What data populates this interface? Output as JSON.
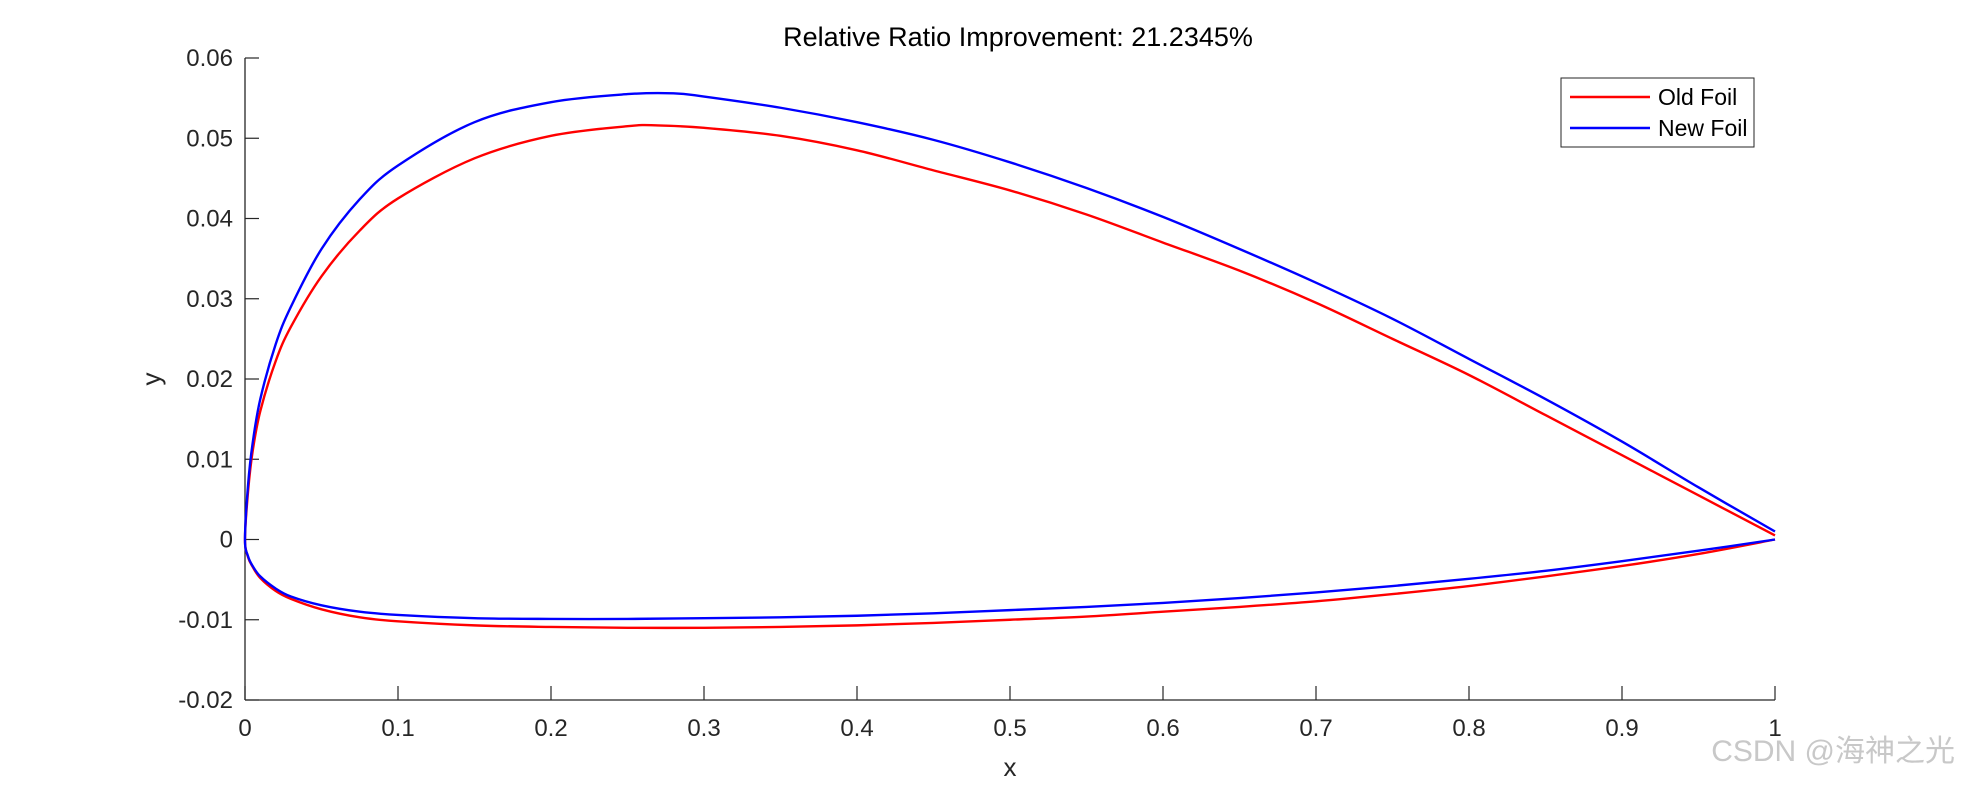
{
  "chart_data": {
    "type": "line",
    "title": "Relative Ratio Improvement: 21.2345%",
    "xlabel": "x",
    "ylabel": "y",
    "xlim": [
      0,
      1
    ],
    "ylim": [
      -0.02,
      0.06
    ],
    "xticks": [
      0,
      0.1,
      0.2,
      0.3,
      0.4,
      0.5,
      0.6,
      0.7,
      0.8,
      0.9,
      1
    ],
    "xtick_labels": [
      "0",
      "0.1",
      "0.2",
      "0.3",
      "0.4",
      "0.5",
      "0.6",
      "0.7",
      "0.8",
      "0.9",
      "1"
    ],
    "yticks": [
      -0.02,
      -0.01,
      0,
      0.01,
      0.02,
      0.03,
      0.04,
      0.05,
      0.06
    ],
    "ytick_labels": [
      "-0.02",
      "-0.01",
      "0",
      "0.01",
      "0.02",
      "0.03",
      "0.04",
      "0.05",
      "0.06"
    ],
    "grid": false,
    "legend_position": "top-right",
    "series": [
      {
        "name": "Old Foil",
        "color": "#ff0000",
        "x": [
          1.0,
          0.95,
          0.9,
          0.85,
          0.8,
          0.75,
          0.7,
          0.65,
          0.6,
          0.55,
          0.5,
          0.45,
          0.4,
          0.35,
          0.3,
          0.27,
          0.25,
          0.2,
          0.15,
          0.1,
          0.075,
          0.05,
          0.03,
          0.02,
          0.01,
          0.005,
          0.002,
          0.0,
          0.002,
          0.005,
          0.01,
          0.02,
          0.03,
          0.05,
          0.075,
          0.1,
          0.15,
          0.2,
          0.25,
          0.3,
          0.35,
          0.4,
          0.45,
          0.5,
          0.55,
          0.6,
          0.65,
          0.7,
          0.75,
          0.8,
          0.85,
          0.9,
          0.95,
          1.0
        ],
        "y": [
          0.0005,
          0.0055,
          0.0105,
          0.0155,
          0.0205,
          0.025,
          0.0295,
          0.0335,
          0.037,
          0.0405,
          0.0435,
          0.046,
          0.0485,
          0.0503,
          0.0513,
          0.0516,
          0.0515,
          0.0503,
          0.0475,
          0.0425,
          0.0385,
          0.0328,
          0.0265,
          0.0222,
          0.016,
          0.011,
          0.006,
          0.0,
          -0.0022,
          -0.0034,
          -0.0048,
          -0.0064,
          -0.0074,
          -0.0087,
          -0.0097,
          -0.0102,
          -0.0107,
          -0.0109,
          -0.011,
          -0.011,
          -0.0109,
          -0.0107,
          -0.0104,
          -0.01,
          -0.0096,
          -0.009,
          -0.0084,
          -0.0077,
          -0.0068,
          -0.0058,
          -0.0046,
          -0.0033,
          -0.0018,
          0.0
        ]
      },
      {
        "name": "New Foil",
        "color": "#0000ff",
        "x": [
          1.0,
          0.95,
          0.9,
          0.85,
          0.8,
          0.75,
          0.7,
          0.65,
          0.6,
          0.55,
          0.5,
          0.45,
          0.4,
          0.35,
          0.3,
          0.28,
          0.25,
          0.2,
          0.15,
          0.1,
          0.075,
          0.05,
          0.03,
          0.02,
          0.01,
          0.005,
          0.002,
          0.0,
          0.002,
          0.005,
          0.01,
          0.02,
          0.03,
          0.05,
          0.075,
          0.1,
          0.15,
          0.2,
          0.25,
          0.3,
          0.35,
          0.4,
          0.45,
          0.5,
          0.55,
          0.6,
          0.65,
          0.7,
          0.75,
          0.8,
          0.85,
          0.9,
          0.95,
          1.0
        ],
        "y": [
          0.001,
          0.0065,
          0.0122,
          0.0175,
          0.0225,
          0.0275,
          0.032,
          0.0362,
          0.0402,
          0.0438,
          0.047,
          0.0498,
          0.052,
          0.0538,
          0.0552,
          0.0556,
          0.0555,
          0.0545,
          0.052,
          0.0466,
          0.0424,
          0.0362,
          0.029,
          0.0243,
          0.0175,
          0.012,
          0.0068,
          0.0,
          -0.0021,
          -0.0033,
          -0.0046,
          -0.0061,
          -0.0071,
          -0.0082,
          -0.009,
          -0.0094,
          -0.0098,
          -0.0099,
          -0.0099,
          -0.0098,
          -0.0097,
          -0.0095,
          -0.0092,
          -0.0088,
          -0.0084,
          -0.0079,
          -0.0073,
          -0.0066,
          -0.0058,
          -0.0049,
          -0.0039,
          -0.0027,
          -0.0014,
          0.0
        ]
      }
    ]
  },
  "watermark": "CSDN @海神之光"
}
